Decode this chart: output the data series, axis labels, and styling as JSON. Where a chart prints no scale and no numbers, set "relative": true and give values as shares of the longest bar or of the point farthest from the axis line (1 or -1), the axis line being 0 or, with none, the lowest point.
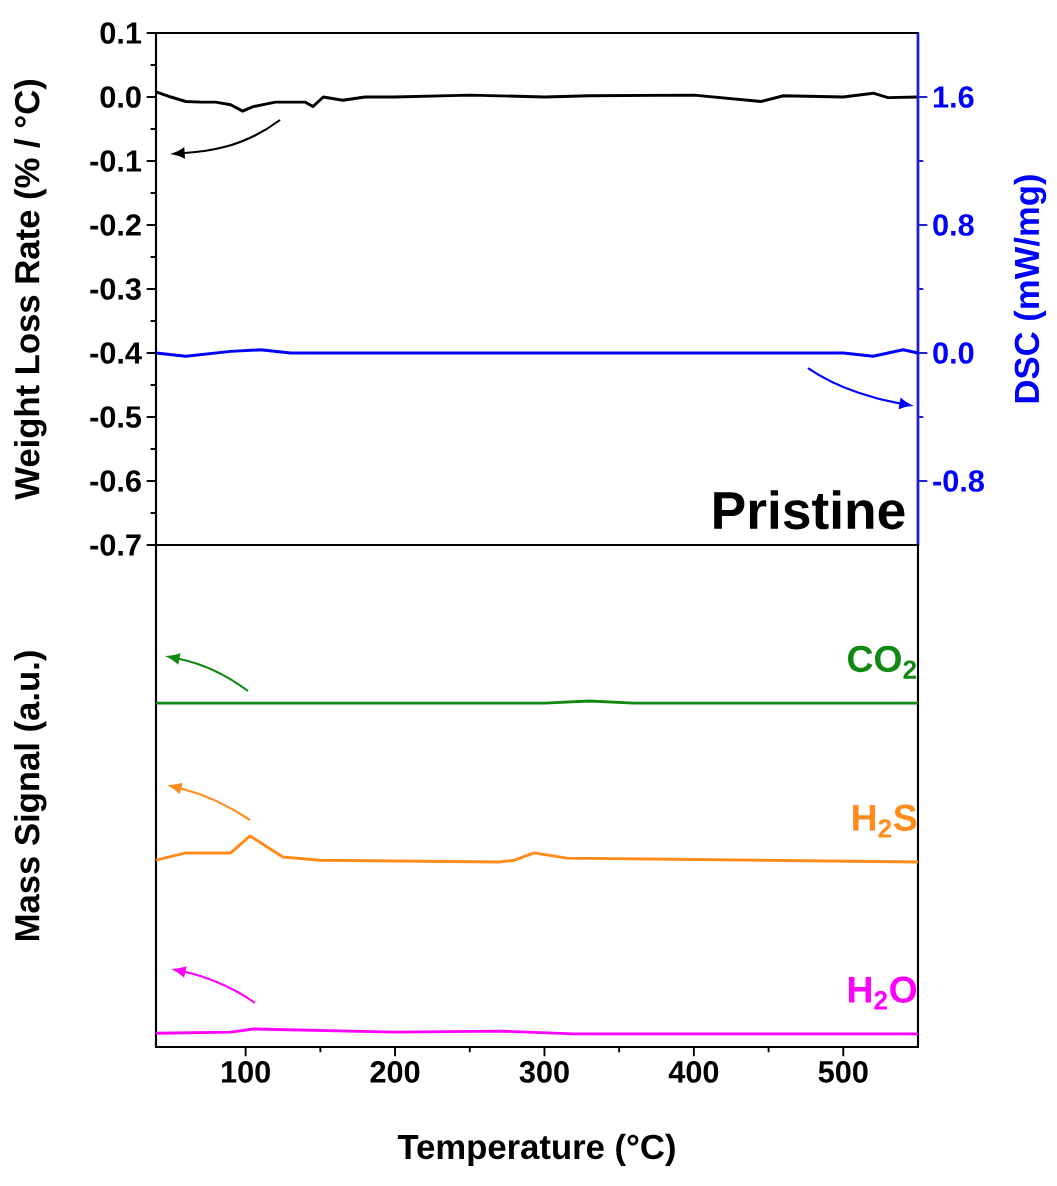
{
  "chart_data": [
    {
      "type": "line",
      "ylabel": "Weight Loss Rate (% / °C)",
      "y2label": "DSC (mW/mg)",
      "annotations": [
        "Pristine"
      ],
      "xlim": [
        40,
        550
      ],
      "ylim": [
        -0.7,
        0.1
      ],
      "yticks": [
        -0.7,
        -0.6,
        -0.5,
        -0.4,
        -0.3,
        -0.2,
        -0.1,
        {
          "value": 0,
          "label": "0.0"
        },
        0.1
      ],
      "y2lim": [
        -1.2,
        2.0
      ],
      "y2ticks": [
        -0.8,
        {
          "value": 0,
          "label": "0.0"
        },
        0.8,
        1.6
      ],
      "tick_labels": "y",
      "series": [
        {
          "color": "#000000",
          "x": [
            40,
            50,
            60,
            70,
            80,
            90,
            98,
            105,
            120,
            140,
            145,
            152,
            165,
            180,
            200,
            250,
            300,
            330,
            400,
            445,
            460,
            500,
            520,
            530,
            550
          ],
          "values": [
            0.008,
            0.0,
            -0.007,
            -0.008,
            -0.008,
            -0.012,
            -0.022,
            -0.015,
            -0.008,
            -0.008,
            -0.015,
            0.0,
            -0.005,
            0.0,
            0.0,
            0.003,
            0.0,
            0.002,
            0.003,
            -0.007,
            0.002,
            0.0,
            0.006,
            -0.001,
            0.0
          ]
        },
        {
          "color": "#0000ff",
          "axis": "y2",
          "x": [
            40,
            60,
            90,
            110,
            130,
            300,
            500,
            520,
            540,
            550
          ],
          "values": [
            0.0,
            -0.02,
            0.01,
            0.02,
            0.0,
            0.0,
            0.0,
            -0.02,
            0.02,
            0.0
          ]
        }
      ]
    },
    {
      "type": "line",
      "relative": true,
      "xlabel": "Temperature (°C)",
      "ylabel": "Mass Signal (a.u.)",
      "xlim": [
        40,
        550
      ],
      "xticks": [
        100,
        200,
        300,
        400,
        500
      ],
      "tick_labels": "x",
      "series": [
        {
          "name": "CO$_{2}$",
          "color": "#118811",
          "x": [
            40,
            300,
            330,
            360,
            550
          ],
          "values": [
            0.994,
            0.994,
            1.0,
            0.994,
            0.994
          ]
        },
        {
          "name": "H$_{2}$S",
          "color": "#ff8c1a",
          "x": [
            40,
            60,
            90,
            103,
            125,
            150,
            270,
            280,
            293,
            315,
            550
          ],
          "values": [
            0.54,
            0.561,
            0.561,
            0.61,
            0.549,
            0.54,
            0.535,
            0.54,
            0.561,
            0.546,
            0.535
          ]
        },
        {
          "name": "H$_{2}$O",
          "color": "#ff00ff",
          "x": [
            40,
            90,
            105,
            200,
            270,
            320,
            550
          ],
          "values": [
            0.04,
            0.043,
            0.052,
            0.043,
            0.046,
            0.038,
            0.038
          ]
        }
      ]
    }
  ]
}
